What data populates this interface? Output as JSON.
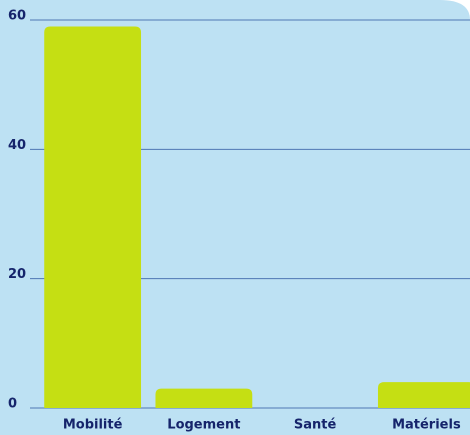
{
  "chart_data": {
    "type": "bar",
    "categories": [
      "Mobilité",
      "Logement",
      "Santé",
      "Matériels"
    ],
    "values": [
      59,
      3,
      0,
      4
    ],
    "color": "#c5df13",
    "ylim": [
      0,
      60
    ],
    "yticks": [
      0,
      20,
      40,
      60
    ],
    "grid": true
  }
}
